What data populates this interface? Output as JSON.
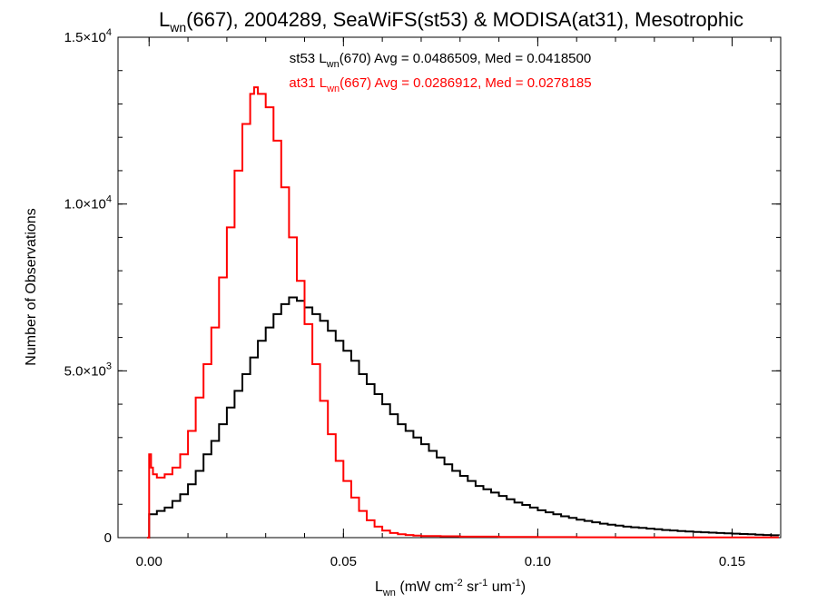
{
  "chart_data": {
    "type": "line",
    "title_main": "L",
    "title_sub": "wn",
    "title_rest": "(667), 2004289, SeaWiFS(st53) & MODISA(at31), Mesotrophic",
    "stats": [
      {
        "prefix": "st53 L",
        "sub": "wn",
        "rest": "(670) Avg = 0.0486509, Med = 0.0418500",
        "color": "#000000"
      },
      {
        "prefix": "at31 L",
        "sub": "wn",
        "rest": "(667) Avg = 0.0286912, Med = 0.0278185",
        "color": "#ff0000"
      }
    ],
    "xlabel": {
      "main": "L",
      "sub": "wn",
      "rest": " (mW cm",
      "sup1": "-2",
      "rest2": " sr",
      "sup2": "-1",
      "rest3": " um",
      "sup3": "-1",
      "rest4": ")"
    },
    "ylabel": "Number of Observations",
    "xlim": [
      -0.008,
      0.1625
    ],
    "ylim": [
      0,
      15000
    ],
    "xticks": [
      {
        "value": 0.0,
        "label": "0.00"
      },
      {
        "value": 0.05,
        "label": "0.05"
      },
      {
        "value": 0.1,
        "label": "0.10"
      },
      {
        "value": 0.15,
        "label": "0.15"
      }
    ],
    "yticks": [
      {
        "value": 0,
        "label": "0",
        "exp": ""
      },
      {
        "value": 5000,
        "label": "5.0×10",
        "exp": "3"
      },
      {
        "value": 10000,
        "label": "1.0×10",
        "exp": "4"
      },
      {
        "value": 15000,
        "label": "1.5×10",
        "exp": "4"
      }
    ],
    "series": [
      {
        "name": "st53",
        "color": "#000000",
        "points": [
          [
            -0.0005,
            0
          ],
          [
            0.0,
            700
          ],
          [
            0.002,
            800
          ],
          [
            0.004,
            900
          ],
          [
            0.006,
            1100
          ],
          [
            0.008,
            1300
          ],
          [
            0.01,
            1600
          ],
          [
            0.012,
            2000
          ],
          [
            0.014,
            2500
          ],
          [
            0.016,
            2900
          ],
          [
            0.018,
            3400
          ],
          [
            0.02,
            3900
          ],
          [
            0.022,
            4400
          ],
          [
            0.024,
            4900
          ],
          [
            0.026,
            5400
          ],
          [
            0.028,
            5900
          ],
          [
            0.03,
            6300
          ],
          [
            0.032,
            6700
          ],
          [
            0.034,
            7000
          ],
          [
            0.036,
            7200
          ],
          [
            0.038,
            7100
          ],
          [
            0.04,
            6900
          ],
          [
            0.042,
            6700
          ],
          [
            0.044,
            6500
          ],
          [
            0.046,
            6200
          ],
          [
            0.048,
            5900
          ],
          [
            0.05,
            5600
          ],
          [
            0.052,
            5300
          ],
          [
            0.054,
            4900
          ],
          [
            0.056,
            4600
          ],
          [
            0.058,
            4300
          ],
          [
            0.06,
            4000
          ],
          [
            0.062,
            3700
          ],
          [
            0.064,
            3400
          ],
          [
            0.066,
            3200
          ],
          [
            0.068,
            3000
          ],
          [
            0.07,
            2800
          ],
          [
            0.072,
            2600
          ],
          [
            0.074,
            2400
          ],
          [
            0.076,
            2200
          ],
          [
            0.078,
            2000
          ],
          [
            0.08,
            1850
          ],
          [
            0.082,
            1700
          ],
          [
            0.084,
            1550
          ],
          [
            0.086,
            1450
          ],
          [
            0.088,
            1350
          ],
          [
            0.09,
            1250
          ],
          [
            0.092,
            1150
          ],
          [
            0.094,
            1050
          ],
          [
            0.096,
            980
          ],
          [
            0.098,
            900
          ],
          [
            0.1,
            820
          ],
          [
            0.102,
            760
          ],
          [
            0.104,
            700
          ],
          [
            0.106,
            640
          ],
          [
            0.108,
            590
          ],
          [
            0.11,
            540
          ],
          [
            0.112,
            500
          ],
          [
            0.114,
            460
          ],
          [
            0.116,
            420
          ],
          [
            0.118,
            390
          ],
          [
            0.12,
            360
          ],
          [
            0.122,
            330
          ],
          [
            0.124,
            310
          ],
          [
            0.126,
            290
          ],
          [
            0.128,
            270
          ],
          [
            0.13,
            250
          ],
          [
            0.132,
            230
          ],
          [
            0.134,
            215
          ],
          [
            0.136,
            200
          ],
          [
            0.138,
            185
          ],
          [
            0.14,
            170
          ],
          [
            0.142,
            160
          ],
          [
            0.144,
            150
          ],
          [
            0.146,
            140
          ],
          [
            0.148,
            130
          ],
          [
            0.15,
            120
          ],
          [
            0.152,
            110
          ],
          [
            0.154,
            100
          ],
          [
            0.156,
            90
          ],
          [
            0.158,
            80
          ],
          [
            0.16,
            70
          ],
          [
            0.162,
            60
          ]
        ]
      },
      {
        "name": "at31",
        "color": "#ff0000",
        "points": [
          [
            -0.0005,
            0
          ],
          [
            0.0,
            2500
          ],
          [
            0.0005,
            2100
          ],
          [
            0.001,
            1900
          ],
          [
            0.002,
            1800
          ],
          [
            0.004,
            1900
          ],
          [
            0.006,
            2100
          ],
          [
            0.008,
            2500
          ],
          [
            0.01,
            3200
          ],
          [
            0.012,
            4200
          ],
          [
            0.014,
            5200
          ],
          [
            0.016,
            6300
          ],
          [
            0.018,
            7800
          ],
          [
            0.02,
            9300
          ],
          [
            0.022,
            11000
          ],
          [
            0.024,
            12400
          ],
          [
            0.026,
            13300
          ],
          [
            0.027,
            13500
          ],
          [
            0.028,
            13300
          ],
          [
            0.03,
            12900
          ],
          [
            0.032,
            11900
          ],
          [
            0.034,
            10500
          ],
          [
            0.036,
            9000
          ],
          [
            0.038,
            7700
          ],
          [
            0.04,
            6400
          ],
          [
            0.042,
            5200
          ],
          [
            0.044,
            4100
          ],
          [
            0.046,
            3100
          ],
          [
            0.048,
            2300
          ],
          [
            0.05,
            1700
          ],
          [
            0.052,
            1200
          ],
          [
            0.054,
            800
          ],
          [
            0.056,
            520
          ],
          [
            0.058,
            330
          ],
          [
            0.06,
            210
          ],
          [
            0.062,
            140
          ],
          [
            0.064,
            100
          ],
          [
            0.066,
            80
          ],
          [
            0.068,
            60
          ],
          [
            0.07,
            50
          ],
          [
            0.075,
            40
          ],
          [
            0.08,
            30
          ],
          [
            0.09,
            20
          ],
          [
            0.1,
            15
          ],
          [
            0.11,
            10
          ],
          [
            0.12,
            8
          ],
          [
            0.13,
            6
          ],
          [
            0.14,
            5
          ],
          [
            0.15,
            5
          ],
          [
            0.162,
            5
          ]
        ]
      }
    ],
    "grid": false
  }
}
